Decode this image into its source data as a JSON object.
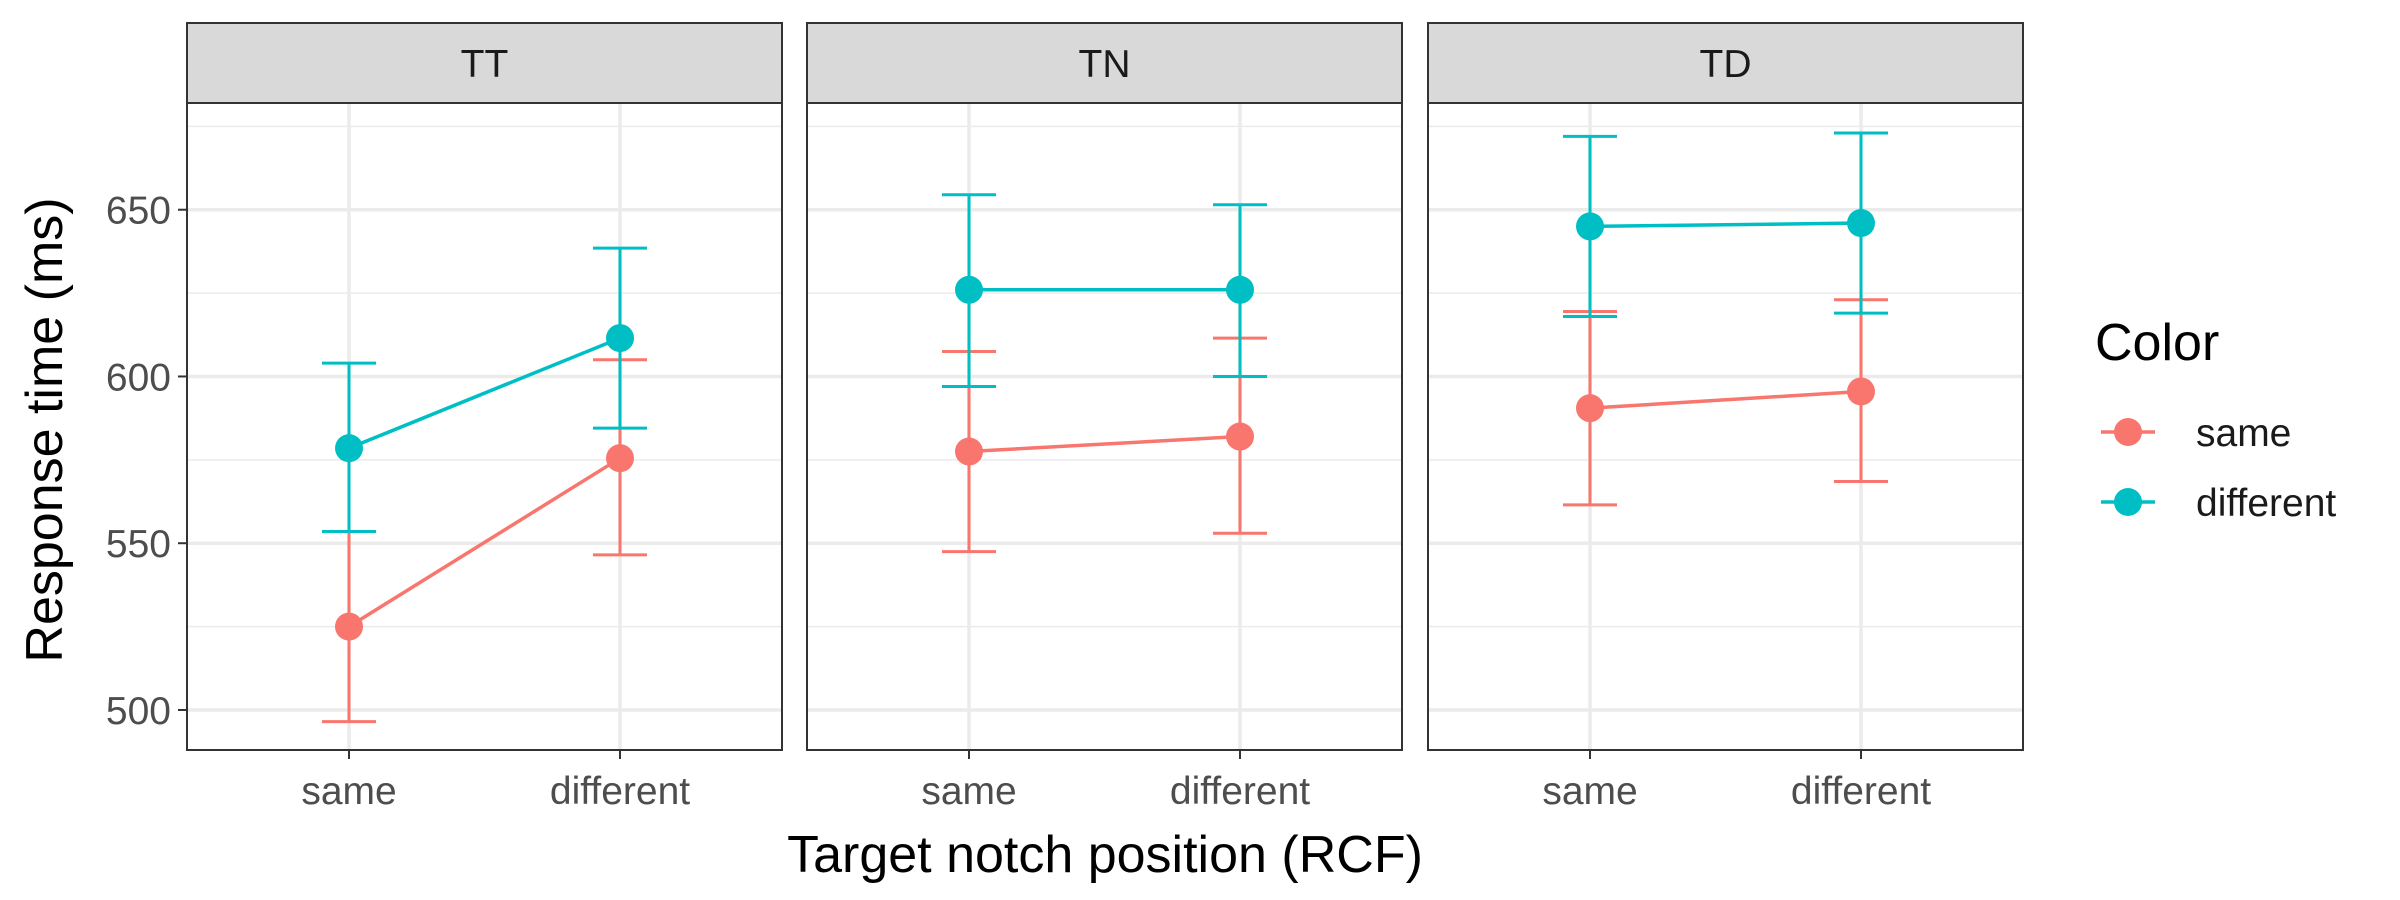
{
  "chart_data": {
    "type": "line",
    "facets": [
      "TT",
      "TN",
      "TD"
    ],
    "categories": [
      "same",
      "different"
    ],
    "xlabel": "Target notch position (RCF)",
    "ylabel": "Response time (ms)",
    "yticks": [
      500,
      550,
      600,
      650
    ],
    "ylim": [
      488,
      682
    ],
    "grid": true,
    "legend": {
      "title": "Color",
      "position": "right"
    },
    "series": [
      {
        "name": "same",
        "color": "#F8766D",
        "panels": [
          {
            "facet": "TT",
            "values": [
              525,
              575.5
            ],
            "lower": [
              496.5,
              546.5
            ],
            "upper": [
              553.5,
              605
            ]
          },
          {
            "facet": "TN",
            "values": [
              577.5,
              582
            ],
            "lower": [
              547.5,
              553
            ],
            "upper": [
              607.5,
              611.5
            ]
          },
          {
            "facet": "TD",
            "values": [
              590.5,
              595.5
            ],
            "lower": [
              561.5,
              568.5
            ],
            "upper": [
              619.5,
              623
            ]
          }
        ]
      },
      {
        "name": "different",
        "color": "#00BFC4",
        "panels": [
          {
            "facet": "TT",
            "values": [
              578.5,
              611.5
            ],
            "lower": [
              553.5,
              584.5
            ],
            "upper": [
              604,
              638.5
            ]
          },
          {
            "facet": "TN",
            "values": [
              626,
              626
            ],
            "lower": [
              597,
              600
            ],
            "upper": [
              654.5,
              651.5
            ]
          },
          {
            "facet": "TD",
            "values": [
              645,
              646
            ],
            "lower": [
              618,
              619
            ],
            "upper": [
              672,
              673
            ]
          }
        ]
      }
    ]
  }
}
